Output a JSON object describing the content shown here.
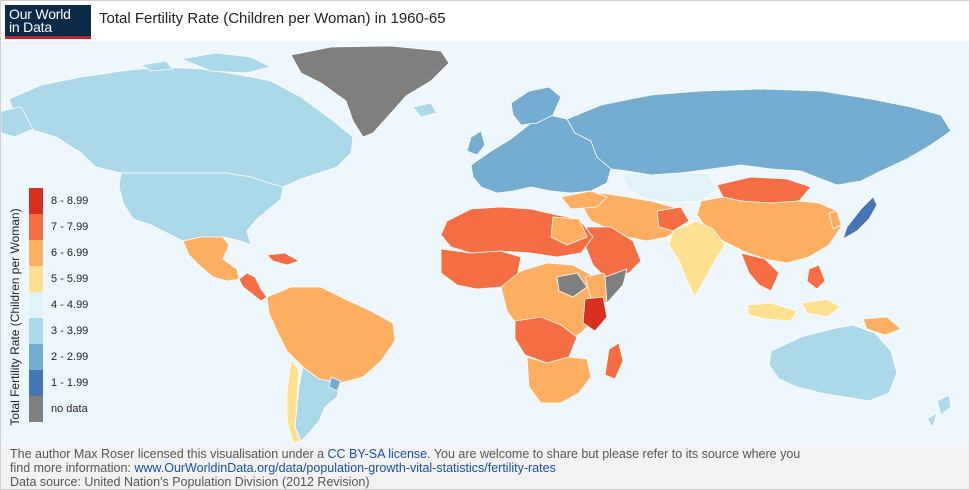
{
  "logo": {
    "line1": "Our World",
    "line2": "in Data"
  },
  "title": "Total Fertility Rate (Children per Woman) in 1960-65",
  "legend": {
    "title": "Total Fertility Rate (Children per Woman)",
    "items": [
      {
        "label": "8 - 8.99",
        "color": "#d7301f"
      },
      {
        "label": "7 - 7.99",
        "color": "#f46d43"
      },
      {
        "label": "6 - 6.99",
        "color": "#fdae61"
      },
      {
        "label": "5 - 5.99",
        "color": "#fee090"
      },
      {
        "label": "4 - 4.99",
        "color": "#e0f3f8"
      },
      {
        "label": "3 - 3.99",
        "color": "#abd9e9"
      },
      {
        "label": "2 - 2.99",
        "color": "#74add1"
      },
      {
        "label": "1 - 1.99",
        "color": "#4575b4"
      },
      {
        "label": "no data",
        "color": "#7f7f7f"
      }
    ]
  },
  "footer": {
    "line1_pre": "The author Max Roser licensed this visualisation under a ",
    "license_link": "CC BY-SA license",
    "line1_post": ". You are welcome to share but please refer to its source where you",
    "line2_pre": "find more information: ",
    "source_link": "www.OurWorldinData.org/data/population-growth-vital-statistics/fertility-rates",
    "line3": "Data source: United Nation's Population Division (2012 Revision)"
  },
  "colors": {
    "ocean": "#eef7fd",
    "border": "#ffffff"
  }
}
